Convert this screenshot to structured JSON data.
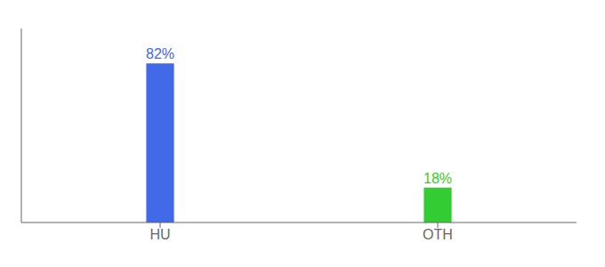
{
  "chart_data": {
    "type": "bar",
    "categories": [
      "HU",
      "OTH"
    ],
    "values": [
      82,
      18
    ],
    "value_labels": [
      "82%",
      "18%"
    ],
    "colors": [
      "#4169e8",
      "#33cc33"
    ],
    "ylim": [
      0,
      100
    ],
    "grid": false,
    "data_labels": true,
    "tick_labels": "x"
  }
}
